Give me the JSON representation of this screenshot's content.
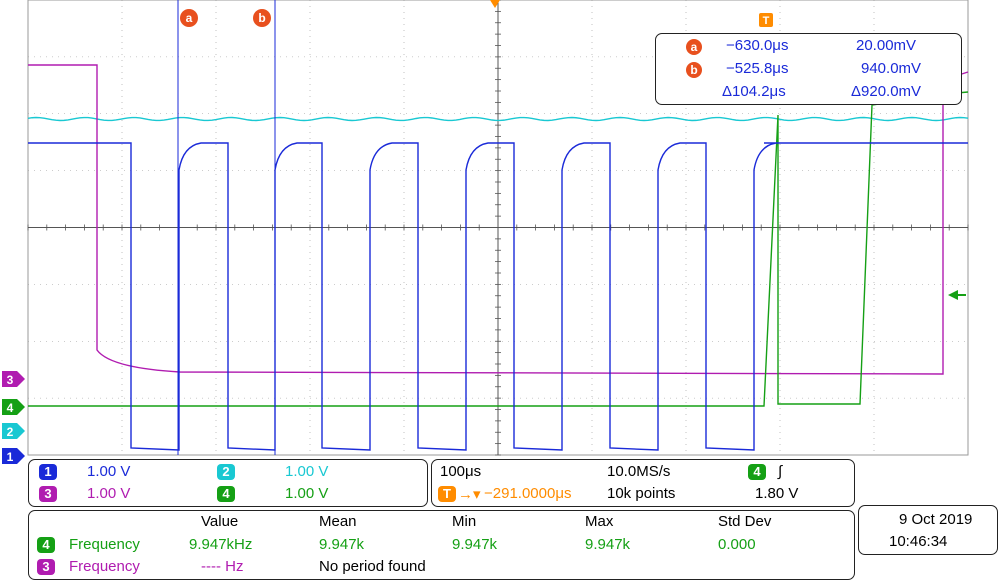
{
  "cursor_readout": {
    "a": {
      "tag": "a",
      "time": "−630.0μs",
      "volt": "20.00mV"
    },
    "b": {
      "tag": "b",
      "time": "−525.8μs",
      "volt": "940.0mV"
    },
    "delta": {
      "time": "Δ104.2μs",
      "volt": "Δ920.0mV"
    }
  },
  "trigger_marker": "T",
  "channels": [
    {
      "num": "1",
      "scale": "1.00 V",
      "color": "#1a2ad8"
    },
    {
      "num": "2",
      "scale": "1.00 V",
      "color": "#19c8d2"
    },
    {
      "num": "3",
      "scale": "1.00 V",
      "color": "#b01cb0"
    },
    {
      "num": "4",
      "scale": "1.00 V",
      "color": "#15a015"
    }
  ],
  "timebase": {
    "per_div": "100μs",
    "sample_rate": "10.0MS/s",
    "trigger_source": "4",
    "trigger_slope": "∫",
    "trigger_pos": "−291.0000μs",
    "record_length": "10k points",
    "trigger_level": "1.80 V"
  },
  "measurements": {
    "headers": [
      "Value",
      "Mean",
      "Min",
      "Max",
      "Std Dev"
    ],
    "rows": [
      {
        "ch": "4",
        "name": "Frequency",
        "value": "9.947kHz",
        "mean": "9.947k",
        "min": "9.947k",
        "max": "9.947k",
        "std": "0.000"
      },
      {
        "ch": "3",
        "name": "Frequency",
        "value": "---- Hz",
        "note": "No period found"
      }
    ]
  },
  "datetime": {
    "date": "9 Oct  2019",
    "time": "10:46:34"
  },
  "colors": {
    "grid": "#9a9a9a",
    "accent": "#ff8c00",
    "cursor": "#e8501e"
  }
}
